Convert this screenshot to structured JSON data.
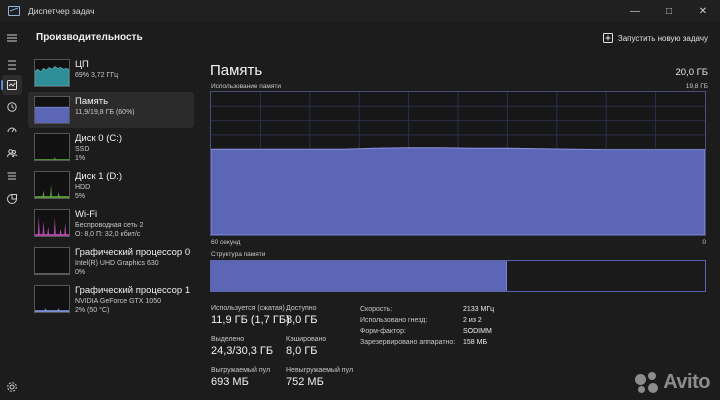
{
  "window": {
    "title": "Диспетчер задач"
  },
  "header": {
    "title": "Производительность",
    "run_task_label": "Запустить новую задачу"
  },
  "devices": [
    {
      "name": "ЦП",
      "sub": [
        "69% 3,72 ГГц"
      ]
    },
    {
      "name": "Память",
      "sub": [
        "11,9/19,8 ГБ (60%)"
      ]
    },
    {
      "name": "Диск 0 (C:)",
      "sub": [
        "SSD",
        "1%"
      ]
    },
    {
      "name": "Диск 1 (D:)",
      "sub": [
        "HDD",
        "5%"
      ]
    },
    {
      "name": "Wi-Fi",
      "sub": [
        "Беспроводная сеть 2",
        "О: 8,0 П: 32,0 кбит/с"
      ]
    },
    {
      "name": "Графический процессор 0",
      "sub": [
        "Intel(R) UHD Graphics 630",
        "0%"
      ]
    },
    {
      "name": "Графический процессор 1",
      "sub": [
        "NVIDIA GeForce GTX 1050",
        "2% (50 °C)"
      ]
    }
  ],
  "memory": {
    "title": "Память",
    "total": "20,0 ГБ",
    "usage_label": "Использование памяти",
    "usage_max": "19,8 ГБ",
    "usage_fraction": 0.6,
    "axis_left": "60 секунд",
    "axis_right": "0",
    "composition_label": "Структура памяти",
    "composition_used_fraction": 0.6,
    "stats": {
      "in_use_label": "Используется (сжатая)",
      "in_use_value": "11,9 ГБ (1,7 ГБ)",
      "available_label": "Доступно",
      "available_value": "8,0 ГБ",
      "committed_label": "Выделено",
      "committed_value": "24,3/30,3 ГБ",
      "cached_label": "Кэшировано",
      "cached_value": "8,0 ГБ",
      "paged_label": "Выгружаемый пул",
      "paged_value": "693 МБ",
      "nonpaged_label": "Невыгружаемый пул",
      "nonpaged_value": "752 МБ"
    },
    "info": [
      {
        "k": "Скорость:",
        "v": "2133 МГц"
      },
      {
        "k": "Использовано гнезд:",
        "v": "2 из 2"
      },
      {
        "k": "Форм-фактор:",
        "v": "SODIMM"
      },
      {
        "k": "Зарезервировано аппаратно:",
        "v": "158 МБ"
      }
    ]
  },
  "watermark": {
    "text": "Avito"
  },
  "colors": {
    "memory_fill": "#5c66b6",
    "cpu_fill": "#2e8d96",
    "disk_fill": "#5a9a3a",
    "wifi_fill": "#b04aa8",
    "accent": "#5f8dd3"
  },
  "icons": [
    "hamburger-icon",
    "performance-icon",
    "history-icon",
    "startup-icon",
    "users-icon",
    "details-icon",
    "services-icon",
    "settings-icon",
    "add-task-icon"
  ]
}
